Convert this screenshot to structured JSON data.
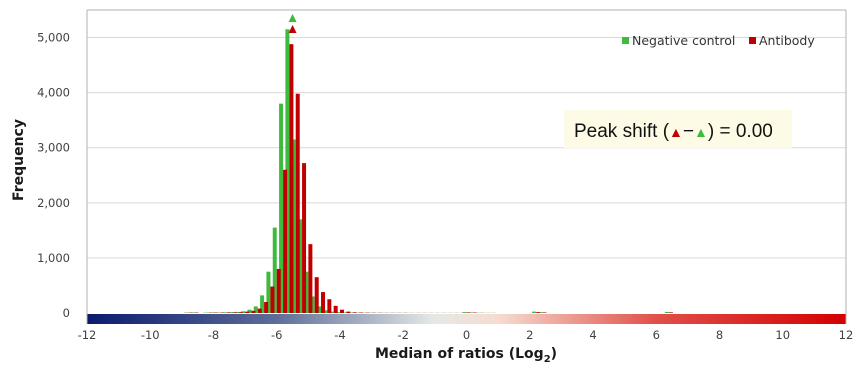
{
  "chart_data": {
    "type": "bar",
    "xlabel": "Median of ratios (Log",
    "xlabel_subscript": "2",
    "xlabel_close": ")",
    "ylabel": "Frequency",
    "xlim": [
      -12,
      12
    ],
    "ylim": [
      0,
      5500
    ],
    "x_ticks": [
      "-12",
      "-10",
      "-8",
      "-6",
      "-4",
      "-2",
      "0",
      "2",
      "4",
      "6",
      "8",
      "10",
      "12"
    ],
    "y_ticks": [
      "0",
      "1,000",
      "2,000",
      "3,000",
      "4,000",
      "5,000"
    ],
    "grid": "horizontal",
    "legend_position": "top-right",
    "x": [
      -8.8,
      -8.6,
      -8.2,
      -8.0,
      -7.8,
      -7.6,
      -7.4,
      -7.2,
      -7.0,
      -6.8,
      -6.6,
      -6.4,
      -6.2,
      -6.0,
      -5.8,
      -5.6,
      -5.4,
      -5.2,
      -5.0,
      -4.8,
      -4.6,
      -4.4,
      -4.2,
      -4.0,
      -3.8,
      -3.6,
      -3.4,
      -3.2,
      -3.0,
      -2.8,
      -2.6,
      -2.4,
      -2.2,
      -2.0,
      -1.8,
      -1.6,
      -1.4,
      -1.2,
      -1.0,
      -0.8,
      -0.6,
      -0.4,
      -0.2,
      0.0,
      0.2,
      0.4,
      0.6,
      0.8,
      2.2,
      2.4,
      6.4
    ],
    "series": [
      {
        "name": "Negative control",
        "color": "#3dbb3d",
        "values": [
          8,
          10,
          6,
          10,
          8,
          12,
          15,
          20,
          30,
          60,
          120,
          320,
          750,
          1550,
          3800,
          5150,
          3150,
          1700,
          750,
          300,
          120,
          50,
          25,
          15,
          10,
          8,
          6,
          5,
          5,
          4,
          4,
          3,
          3,
          3,
          3,
          2,
          2,
          2,
          2,
          2,
          2,
          2,
          2,
          15,
          10,
          4,
          3,
          2,
          25,
          15,
          20
        ]
      },
      {
        "name": "Antibody",
        "color": "#c00000",
        "values": [
          6,
          8,
          5,
          8,
          7,
          10,
          12,
          15,
          25,
          40,
          80,
          200,
          480,
          800,
          2600,
          4880,
          3980,
          2720,
          1250,
          650,
          380,
          250,
          130,
          60,
          25,
          12,
          8,
          6,
          5,
          4,
          3,
          3,
          3,
          3,
          2,
          2,
          2,
          2,
          2,
          2,
          2,
          2,
          2,
          10,
          8,
          3,
          2,
          2,
          15,
          10,
          12
        ]
      }
    ],
    "peaks": {
      "negative_control_x": -5.5,
      "antibody_x": -5.5
    },
    "annotation": {
      "prefix": "Peak shift (",
      "dash": "−",
      "suffix": ") = 0.00"
    },
    "colorbar_stops": [
      {
        "value": -12,
        "color": "#0b1a6e"
      },
      {
        "value": -6,
        "color": "#5e6e99"
      },
      {
        "value": -1,
        "color": "#e5e9e6"
      },
      {
        "value": 1,
        "color": "#f6dcd0"
      },
      {
        "value": 6,
        "color": "#e0504a"
      },
      {
        "value": 12,
        "color": "#d40000"
      }
    ],
    "colors": {
      "axis": "#b0b0b0",
      "grid": "#d9d9d9",
      "annot_bg": "#fdfbe6"
    }
  }
}
